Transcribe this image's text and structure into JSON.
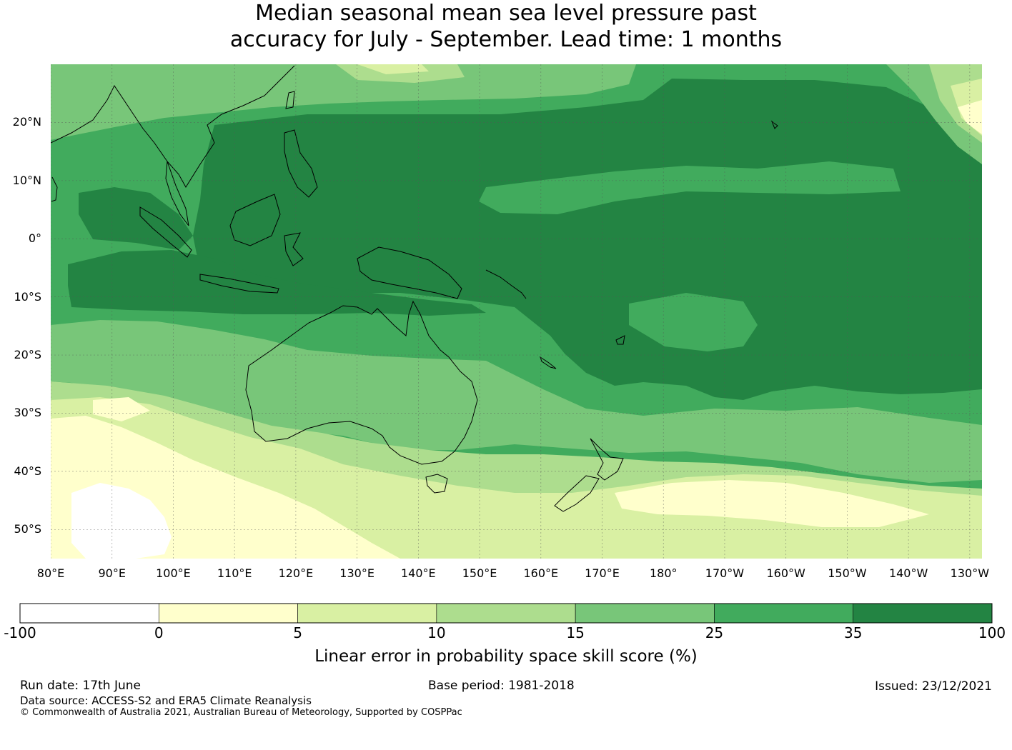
{
  "title": {
    "line1": "Median seasonal mean sea level pressure past",
    "line2": "accuracy for July - September. Lead time: 1 months"
  },
  "map": {
    "lon_range": [
      80,
      232
    ],
    "lat_range": [
      -55,
      30
    ],
    "lat_ticks": [
      {
        "value": 20,
        "label": "20°N"
      },
      {
        "value": 10,
        "label": "10°N"
      },
      {
        "value": 0,
        "label": "0°"
      },
      {
        "value": -10,
        "label": "10°S"
      },
      {
        "value": -20,
        "label": "20°S"
      },
      {
        "value": -30,
        "label": "30°S"
      },
      {
        "value": -40,
        "label": "40°S"
      },
      {
        "value": -50,
        "label": "50°S"
      }
    ],
    "lon_ticks": [
      {
        "value": 80,
        "label": "80°E"
      },
      {
        "value": 90,
        "label": "90°E"
      },
      {
        "value": 100,
        "label": "100°E"
      },
      {
        "value": 110,
        "label": "110°E"
      },
      {
        "value": 120,
        "label": "120°E"
      },
      {
        "value": 130,
        "label": "130°E"
      },
      {
        "value": 140,
        "label": "140°E"
      },
      {
        "value": 150,
        "label": "150°E"
      },
      {
        "value": 160,
        "label": "160°E"
      },
      {
        "value": 170,
        "label": "170°E"
      },
      {
        "value": 180,
        "label": "180°"
      },
      {
        "value": 190,
        "label": "170°W"
      },
      {
        "value": 200,
        "label": "160°W"
      },
      {
        "value": 210,
        "label": "150°W"
      },
      {
        "value": 220,
        "label": "140°W"
      },
      {
        "value": 230,
        "label": "130°W"
      }
    ],
    "gridlines": true
  },
  "colorbar": {
    "bins": [
      {
        "from": "-100",
        "to": "0",
        "color": "#ffffff"
      },
      {
        "from": "0",
        "to": "5",
        "color": "#ffffcc"
      },
      {
        "from": "5",
        "to": "10",
        "color": "#d9f0a3"
      },
      {
        "from": "10",
        "to": "15",
        "color": "#addd8e"
      },
      {
        "from": "15",
        "to": "25",
        "color": "#78c679"
      },
      {
        "from": "25",
        "to": "35",
        "color": "#41ab5d"
      },
      {
        "from": "35",
        "to": "100",
        "color": "#238443"
      }
    ],
    "tick_labels": [
      "-100",
      "0",
      "5",
      "10",
      "15",
      "25",
      "35",
      "100"
    ],
    "label": "Linear error in probability space skill score (%)"
  },
  "footer": {
    "run_date": "Run date: 17th June",
    "base_period": "Base period: 1981-2018",
    "issued": "Issued: 23/12/2021",
    "data_source": "Data source: ACCESS-S2 and ERA5 Climate Reanalysis",
    "copyright": "© Commonwealth of Australia 2021, Australian Bureau of Meteorology, Supported by COSPPac"
  }
}
